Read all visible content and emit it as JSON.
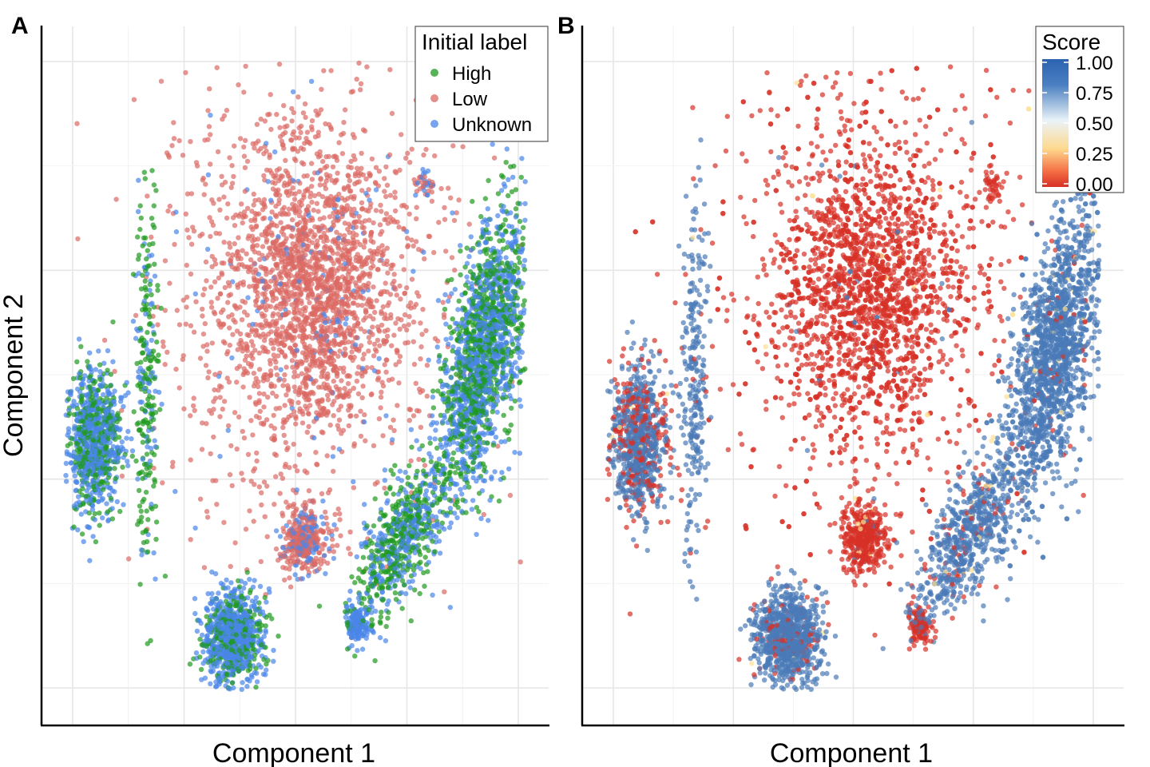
{
  "chart_data": [
    {
      "panel": "A",
      "type": "scatter",
      "xlabel": "Component 1",
      "ylabel": "Component 2",
      "grid": true,
      "axis_ticks_labeled": false,
      "legend": {
        "title": "Initial label",
        "placement": "top-right",
        "entries": [
          {
            "name": "High",
            "color": "#1e9a1e"
          },
          {
            "name": "Low",
            "color": "#db6a64"
          },
          {
            "name": "Unknown",
            "color": "#4a86e8"
          }
        ]
      },
      "colors": {
        "High": "#1e9a1e",
        "Low": "#db6a64",
        "Unknown": "#4a86e8"
      },
      "point_opacity": 0.7,
      "clusters": [
        {
          "name": "large-top",
          "x": 0.53,
          "y": 0.63,
          "sx": 0.085,
          "sy": 0.105,
          "n": 2600,
          "mix": {
            "Low": 0.95,
            "Unknown": 0.05
          }
        },
        {
          "name": "left-blob",
          "x": 0.08,
          "y": 0.4,
          "sx": 0.028,
          "sy": 0.055,
          "n": 900,
          "mix": {
            "Unknown": 0.65,
            "High": 0.35
          }
        },
        {
          "name": "left-stripe",
          "x": 0.19,
          "y": 0.49,
          "sx": 0.012,
          "sy": 0.13,
          "n": 260,
          "mix": {
            "High": 0.7,
            "Unknown": 0.3
          }
        },
        {
          "name": "small-center",
          "x": 0.52,
          "y": 0.25,
          "sx": 0.022,
          "sy": 0.025,
          "n": 380,
          "mix": {
            "Low": 0.65,
            "Unknown": 0.35
          }
        },
        {
          "name": "bottom-blob",
          "x": 0.37,
          "y": 0.1,
          "sx": 0.03,
          "sy": 0.035,
          "n": 950,
          "mix": {
            "Unknown": 0.7,
            "High": 0.3
          }
        },
        {
          "name": "small-bottom",
          "x": 0.63,
          "y": 0.12,
          "sx": 0.012,
          "sy": 0.015,
          "n": 160,
          "mix": {
            "Unknown": 0.9,
            "High": 0.1
          }
        },
        {
          "name": "diagonal-lower",
          "x": 0.72,
          "y": 0.25,
          "sx": 0.035,
          "sy": 0.06,
          "n": 650,
          "mix": {
            "High": 0.55,
            "Unknown": 0.45
          }
        },
        {
          "name": "right-big",
          "x": 0.89,
          "y": 0.53,
          "sx": 0.038,
          "sy": 0.11,
          "n": 1800,
          "mix": {
            "Unknown": 0.55,
            "High": 0.45
          }
        },
        {
          "name": "top-right-small",
          "x": 0.77,
          "y": 0.79,
          "sx": 0.01,
          "sy": 0.012,
          "n": 40,
          "mix": {
            "Low": 0.6,
            "Unknown": 0.4
          }
        }
      ]
    },
    {
      "panel": "B",
      "type": "scatter",
      "xlabel": "Component 1",
      "ylabel": "",
      "grid": true,
      "axis_ticks_labeled": false,
      "legend": {
        "title": "Score",
        "placement": "top-right",
        "type": "colorbar",
        "ticks": [
          "1.00",
          "0.75",
          "0.50",
          "0.25",
          "0.00"
        ],
        "gradient": [
          "#2c63b0",
          "#4a7fc1",
          "#eaf3f8",
          "#fed98e",
          "#f46d43",
          "#d73027"
        ]
      },
      "score_colors": {
        "high": "#4a7ab8",
        "low": "#d73027",
        "mid": "#fee090"
      },
      "point_opacity": 0.7,
      "clusters": [
        {
          "name": "large-top",
          "x": 0.53,
          "y": 0.63,
          "sx": 0.085,
          "sy": 0.105,
          "n": 2600,
          "score_high_frac": 0.01
        },
        {
          "name": "left-blob",
          "x": 0.08,
          "y": 0.4,
          "sx": 0.028,
          "sy": 0.055,
          "n": 900,
          "score_high_frac": 0.7
        },
        {
          "name": "left-stripe",
          "x": 0.19,
          "y": 0.49,
          "sx": 0.012,
          "sy": 0.13,
          "n": 260,
          "score_high_frac": 0.95
        },
        {
          "name": "small-center",
          "x": 0.52,
          "y": 0.25,
          "sx": 0.022,
          "sy": 0.025,
          "n": 380,
          "score_high_frac": 0.02
        },
        {
          "name": "bottom-blob",
          "x": 0.37,
          "y": 0.1,
          "sx": 0.03,
          "sy": 0.035,
          "n": 950,
          "score_high_frac": 0.92
        },
        {
          "name": "small-bottom",
          "x": 0.63,
          "y": 0.12,
          "sx": 0.012,
          "sy": 0.015,
          "n": 160,
          "score_high_frac": 0.2
        },
        {
          "name": "diagonal-lower",
          "x": 0.72,
          "y": 0.25,
          "sx": 0.035,
          "sy": 0.06,
          "n": 650,
          "score_high_frac": 0.9
        },
        {
          "name": "right-big",
          "x": 0.89,
          "y": 0.53,
          "sx": 0.038,
          "sy": 0.11,
          "n": 1800,
          "score_high_frac": 0.97
        },
        {
          "name": "top-right-small",
          "x": 0.77,
          "y": 0.79,
          "sx": 0.01,
          "sy": 0.012,
          "n": 40,
          "score_high_frac": 0.0
        }
      ]
    }
  ]
}
